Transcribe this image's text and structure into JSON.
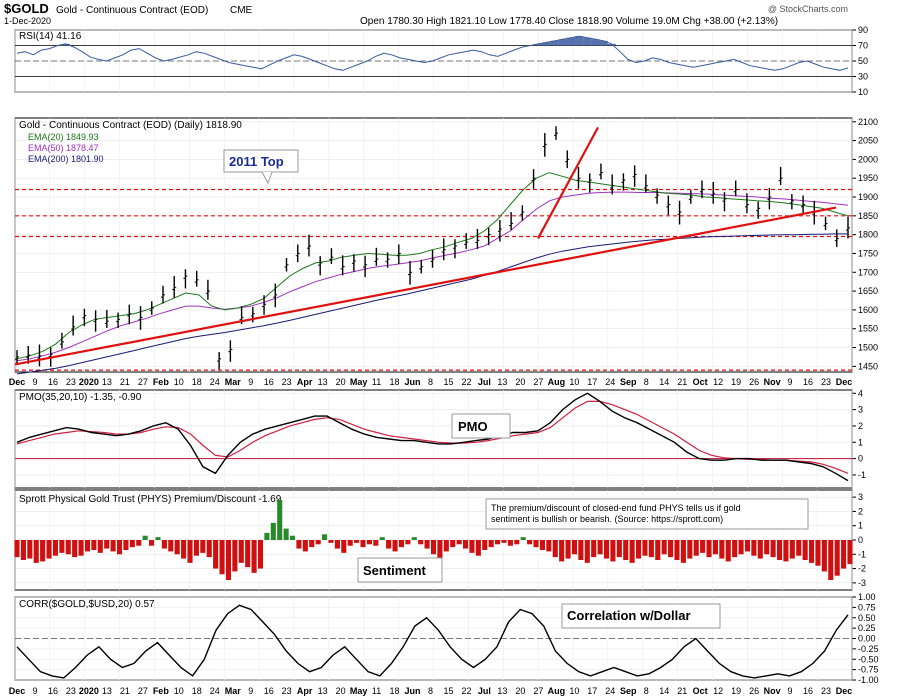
{
  "header": {
    "symbol": "$GOLD",
    "name": "Gold - Continuous Contract (EOD)",
    "exchange": "CME",
    "date": "1-Dec-2020",
    "ohlc": "Open 1780.30  High 1821.10  Low 1778.40  Close 1818.90  Volume 19.0M  Chg +38.00 (+2.13%)",
    "watermark": "@ StockCharts.com"
  },
  "colors": {
    "price": "#000000",
    "ema20": "#1a7a1a",
    "ema50": "#a030c0",
    "ema200": "#1a1a7a",
    "trend": "#e01010",
    "positive": "#2a8a2a",
    "negative": "#d01010",
    "rsi_fill": "#3a5aa0"
  },
  "chart_data": [
    {
      "type": "line",
      "title": "RSI(14) 41.16",
      "ylim": [
        10,
        90
      ],
      "yticks": [
        "90",
        "70",
        "50",
        "30",
        "10"
      ],
      "series": [
        {
          "name": "RSI(14)",
          "values": [
            60,
            62,
            58,
            64,
            66,
            70,
            72,
            68,
            62,
            55,
            52,
            50,
            54,
            58,
            64,
            66,
            60,
            54,
            50,
            52,
            55,
            58,
            62,
            60,
            56,
            52,
            48,
            46,
            44,
            42,
            40,
            45,
            50,
            54,
            58,
            56,
            52,
            48,
            44,
            40,
            38,
            42,
            46,
            50,
            56,
            60,
            58,
            54,
            52,
            50,
            48,
            50,
            54,
            58,
            60,
            62,
            64,
            62,
            58,
            56,
            60,
            64,
            68,
            70,
            72,
            74,
            76,
            78,
            80,
            82,
            80,
            78,
            76,
            72,
            62,
            52,
            48,
            50,
            54,
            52,
            48,
            46,
            44,
            42,
            44,
            46,
            48,
            50,
            52,
            48,
            44,
            42,
            40,
            38,
            40,
            44,
            48,
            50,
            46,
            42,
            40,
            38,
            41
          ]
        }
      ]
    },
    {
      "type": "line",
      "title": "Gold - Continuous Contract (EOD) (Daily) 1818.90",
      "ylim": [
        1435,
        2110
      ],
      "yticks": [
        "2100",
        "2050",
        "2000",
        "1950",
        "1900",
        "1850",
        "1800",
        "1750",
        "1700",
        "1650",
        "1600",
        "1550",
        "1500",
        "1450"
      ],
      "x_labels": [
        "Dec",
        "9",
        "16",
        "23",
        "2020",
        "13",
        "21",
        "27",
        "Feb",
        "10",
        "18",
        "24",
        "Mar",
        "9",
        "16",
        "23",
        "Apr",
        "13",
        "20",
        "May",
        "11",
        "18",
        "Jun",
        "8",
        "15",
        "22",
        "Jul",
        "13",
        "20",
        "27",
        "Aug",
        "10",
        "17",
        "24",
        "Sep",
        "8",
        "14",
        "21",
        "Oct",
        "12",
        "19",
        "26",
        "Nov",
        "9",
        "16",
        "23",
        "Dec"
      ],
      "series": [
        {
          "name": "EMA(20) 1849.93",
          "values": [
            1470,
            1478,
            1490,
            1510,
            1540,
            1560,
            1575,
            1580,
            1585,
            1590,
            1600,
            1615,
            1630,
            1645,
            1640,
            1610,
            1600,
            1605,
            1615,
            1630,
            1660,
            1690,
            1710,
            1725,
            1730,
            1740,
            1745,
            1750,
            1748,
            1745,
            1745,
            1750,
            1760,
            1768,
            1780,
            1790,
            1810,
            1840,
            1880,
            1920,
            1950,
            1965,
            1955,
            1945,
            1940,
            1935,
            1930,
            1925,
            1920,
            1915,
            1910,
            1908,
            1905,
            1900,
            1898,
            1895,
            1893,
            1890,
            1888,
            1885,
            1880,
            1875,
            1870,
            1860,
            1850
          ]
        },
        {
          "name": "EMA(50) 1878.47",
          "values": [
            1465,
            1470,
            1478,
            1488,
            1500,
            1515,
            1530,
            1545,
            1558,
            1568,
            1578,
            1590,
            1600,
            1610,
            1610,
            1605,
            1602,
            1605,
            1610,
            1620,
            1632,
            1648,
            1662,
            1675,
            1685,
            1695,
            1702,
            1710,
            1716,
            1720,
            1725,
            1730,
            1738,
            1745,
            1752,
            1760,
            1770,
            1790,
            1810,
            1840,
            1868,
            1890,
            1900,
            1905,
            1910,
            1912,
            1913,
            1913,
            1912,
            1912,
            1911,
            1910,
            1909,
            1908,
            1906,
            1904,
            1902,
            1900,
            1897,
            1895,
            1892,
            1889,
            1886,
            1882,
            1878
          ]
        },
        {
          "name": "EMA(200) 1801.90",
          "values": [
            1430,
            1435,
            1440,
            1445,
            1452,
            1460,
            1468,
            1476,
            1484,
            1492,
            1500,
            1508,
            1516,
            1524,
            1530,
            1535,
            1540,
            1546,
            1552,
            1558,
            1565,
            1572,
            1580,
            1588,
            1596,
            1604,
            1612,
            1620,
            1628,
            1635,
            1642,
            1650,
            1658,
            1666,
            1674,
            1682,
            1692,
            1702,
            1714,
            1726,
            1738,
            1748,
            1756,
            1762,
            1768,
            1772,
            1776,
            1780,
            1783,
            1786,
            1788,
            1790,
            1792,
            1794,
            1795,
            1796,
            1797,
            1798,
            1799,
            1800,
            1800,
            1801,
            1801,
            1802,
            1802
          ]
        },
        {
          "name": "Price",
          "values": [
            1475,
            1480,
            1478,
            1482,
            1515,
            1555,
            1585,
            1575,
            1570,
            1575,
            1590,
            1580,
            1605,
            1640,
            1660,
            1690,
            1680,
            1650,
            1470,
            1495,
            1580,
            1590,
            1615,
            1640,
            1720,
            1750,
            1770,
            1725,
            1740,
            1715,
            1730,
            1720,
            1735,
            1735,
            1750,
            1700,
            1715,
            1735,
            1760,
            1770,
            1780,
            1785,
            1800,
            1815,
            1830,
            1860,
            1950,
            2040,
            2070,
            2000,
            1950,
            1945,
            1965,
            1930,
            1945,
            1960,
            1930,
            1905,
            1880,
            1860,
            1900,
            1920,
            1910,
            1895,
            1920,
            1880,
            1870,
            1900,
            1950,
            1890,
            1880,
            1860,
            1830,
            1790,
            1818
          ]
        }
      ]
    },
    {
      "type": "line",
      "title": "PMO(35,20,10) -1.35, -0.90",
      "ylim": [
        -1.8,
        4.2
      ],
      "yticks": [
        "4",
        "3",
        "2",
        "1",
        "0",
        "-1"
      ],
      "series": [
        {
          "name": "PMO",
          "values": [
            1.0,
            1.3,
            1.5,
            1.7,
            1.9,
            1.8,
            1.6,
            1.5,
            1.4,
            1.5,
            1.7,
            2.0,
            2.2,
            1.8,
            0.8,
            -0.5,
            -0.9,
            0.2,
            1.0,
            1.5,
            1.8,
            2.0,
            2.2,
            2.4,
            2.6,
            2.6,
            2.2,
            1.8,
            1.5,
            1.3,
            1.2,
            1.1,
            1.1,
            1.0,
            0.9,
            0.9,
            1.0,
            1.1,
            1.2,
            1.4,
            1.6,
            1.6,
            1.7,
            2.2,
            3.0,
            3.6,
            4.0,
            3.5,
            2.9,
            2.5,
            2.2,
            1.8,
            1.4,
            1.0,
            0.4,
            0.0,
            -0.1,
            -0.1,
            0.0,
            0.0,
            -0.1,
            -0.1,
            -0.1,
            -0.2,
            -0.3,
            -0.5,
            -0.9,
            -1.35
          ]
        },
        {
          "name": "Signal",
          "values": [
            0.9,
            1.1,
            1.3,
            1.5,
            1.6,
            1.7,
            1.65,
            1.6,
            1.5,
            1.5,
            1.6,
            1.8,
            1.95,
            1.9,
            1.5,
            0.8,
            0.2,
            0.1,
            0.5,
            1.0,
            1.4,
            1.7,
            2.0,
            2.2,
            2.4,
            2.5,
            2.4,
            2.1,
            1.8,
            1.6,
            1.4,
            1.3,
            1.2,
            1.1,
            1.0,
            0.95,
            0.95,
            1.0,
            1.1,
            1.25,
            1.4,
            1.5,
            1.6,
            1.9,
            2.5,
            3.1,
            3.5,
            3.5,
            3.3,
            3.0,
            2.7,
            2.3,
            1.9,
            1.5,
            1.0,
            0.5,
            0.2,
            0.05,
            0.0,
            -0.05,
            -0.05,
            -0.1,
            -0.1,
            -0.15,
            -0.2,
            -0.35,
            -0.6,
            -0.9
          ]
        }
      ]
    },
    {
      "type": "bar",
      "title": "Sprott Physical Gold Trust (PHYS) Premium/Discount -1.69",
      "annotation": "The premium/discount of closed-end fund PHYS tells us if gold sentiment is bullish or bearish. (Source: https://sprott.com)",
      "label": "Sentiment",
      "ylim": [
        -3.5,
        3.5
      ],
      "yticks": [
        "3",
        "2",
        "1",
        "0",
        "-1",
        "-2",
        "-3"
      ],
      "values": [
        -1.2,
        -1.4,
        -1.3,
        -1.6,
        -1.5,
        -1.3,
        -1.1,
        -0.9,
        -1.0,
        -1.2,
        -1.1,
        -0.8,
        -0.7,
        -0.9,
        -0.6,
        -0.8,
        -1.0,
        -0.7,
        -0.5,
        -0.4,
        0.3,
        -0.4,
        0.2,
        -0.6,
        -0.8,
        -1.0,
        -1.3,
        -1.6,
        -1.1,
        -0.9,
        -1.2,
        -2.0,
        -2.4,
        -2.8,
        -2.2,
        -1.6,
        -1.9,
        -2.3,
        -2.0,
        0.5,
        1.2,
        2.8,
        0.8,
        0.3,
        -0.6,
        -0.8,
        -0.5,
        -0.3,
        0.4,
        -0.2,
        -0.6,
        -0.9,
        -0.4,
        -0.2,
        -0.5,
        -0.3,
        -0.4,
        0.2,
        -0.6,
        -0.8,
        -0.5,
        -0.3,
        0.2,
        -0.3,
        -0.6,
        -1.0,
        -1.3,
        -0.8,
        -0.5,
        -0.3,
        -0.6,
        -0.9,
        -1.1,
        -0.7,
        -0.5,
        -0.3,
        -0.2,
        -0.4,
        -0.3,
        0.2,
        -0.3,
        -0.5,
        -0.7,
        -0.8,
        -1.2,
        -1.5,
        -1.3,
        -1.0,
        -1.4,
        -1.6,
        -1.2,
        -1.0,
        -1.3,
        -1.5,
        -1.2,
        -1.4,
        -1.6,
        -1.3,
        -1.1,
        -1.2,
        -1.4,
        -1.0,
        -1.2,
        -1.4,
        -1.6,
        -1.3,
        -1.1,
        -0.9,
        -1.2,
        -1.0,
        -1.3,
        -1.5,
        -1.2,
        -1.0,
        -0.8,
        -1.1,
        -1.3,
        -1.0,
        -1.2,
        -1.4,
        -1.5,
        -1.3,
        -1.1,
        -1.4,
        -1.6,
        -1.8,
        -2.2,
        -2.8,
        -2.5,
        -2.0,
        -1.69
      ]
    },
    {
      "type": "line",
      "title": "CORR($GOLD,$USD,20) 0.57",
      "label": "Correlation w/Dollar",
      "ylim": [
        -1.0,
        1.0
      ],
      "yticks": [
        "1.00",
        "0.75",
        "0.50",
        "0.25",
        "0.00",
        "-0.25",
        "-0.50",
        "-0.75",
        "-1.00"
      ],
      "series": [
        {
          "name": "CORR",
          "values": [
            -0.2,
            -0.5,
            -0.8,
            -0.9,
            -0.95,
            -0.7,
            -0.4,
            -0.2,
            -0.5,
            -0.7,
            -0.6,
            -0.3,
            -0.1,
            -0.4,
            -0.7,
            -0.9,
            -0.5,
            0.2,
            0.6,
            0.8,
            0.7,
            0.4,
            0.1,
            -0.3,
            -0.6,
            -0.8,
            -0.7,
            -0.4,
            -0.2,
            -0.5,
            -0.8,
            -0.9,
            -0.6,
            -0.2,
            0.3,
            0.5,
            0.2,
            -0.2,
            -0.5,
            -0.7,
            -0.5,
            -0.2,
            0.4,
            0.7,
            0.6,
            0.3,
            -0.3,
            -0.6,
            -0.8,
            -0.9,
            -0.8,
            -0.7,
            -0.8,
            -0.9,
            -0.85,
            -0.7,
            -0.5,
            -0.2,
            0.0,
            -0.3,
            -0.6,
            -0.8,
            -0.9,
            -0.95,
            -0.9,
            -0.85,
            -0.9,
            -0.8,
            -0.6,
            -0.3,
            0.2,
            0.57
          ]
        }
      ]
    }
  ],
  "annotations": {
    "top_label": "2011 Top",
    "pmo_label": "PMO",
    "sentiment_label": "Sentiment",
    "corr_label": "Correlation w/Dollar"
  },
  "x_axis_top": [
    "Dec",
    "9",
    "16",
    "23",
    "2020",
    "13",
    "21",
    "27",
    "Feb",
    "10",
    "18",
    "24",
    "Mar",
    "9",
    "16",
    "23",
    "Apr",
    "13",
    "20",
    "May",
    "11",
    "18",
    "Jun",
    "8",
    "15",
    "22",
    "Jul",
    "13",
    "20",
    "27",
    "Aug",
    "10",
    "17",
    "24",
    "Sep",
    "8",
    "14",
    "21",
    "Oct",
    "12",
    "19",
    "26",
    "Nov",
    "9",
    "16",
    "23",
    "Dec"
  ],
  "legend": {
    "ema20": "EMA(20) 1849.93",
    "ema50": "EMA(50) 1878.47",
    "ema200": "EMA(200) 1801.90"
  }
}
